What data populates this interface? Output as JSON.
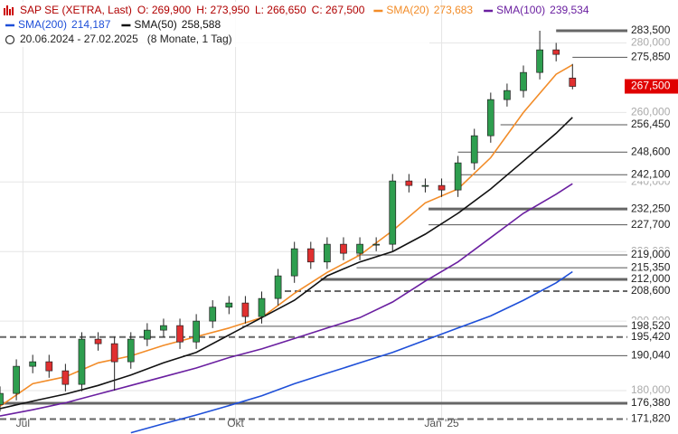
{
  "chart_data": {
    "type": "candlestick",
    "header": {
      "instrument": "SAP SE (XETRA, Last)",
      "open": "O: 269,900",
      "high": "H: 273,950",
      "low": "L: 266,650",
      "close": "C: 267,500",
      "range": "20.06.2024 - 27.02.2025",
      "period": "(8 Monate, 1 Tag)"
    },
    "xlim": [
      0,
      191.5
    ],
    "xticks": [
      {
        "value": 7,
        "label": "Jul"
      },
      {
        "value": 72,
        "label": "Okt"
      },
      {
        "value": 135,
        "label": "Jan '25"
      }
    ],
    "ylim": [
      167.53,
      292.34
    ],
    "yticks": [
      {
        "value": 180,
        "label": "180,000"
      },
      {
        "value": 200,
        "label": "200,000"
      },
      {
        "value": 220,
        "label": "220,000"
      },
      {
        "value": 240,
        "label": "240,000"
      },
      {
        "value": 260,
        "label": "260,000"
      },
      {
        "value": 280,
        "label": "280,000"
      }
    ],
    "candles": {
      "x": [
        0,
        5,
        10,
        15,
        20,
        25,
        30,
        35,
        40,
        45,
        50,
        55,
        60,
        65,
        70,
        75,
        80,
        85,
        90,
        95,
        100,
        105,
        110,
        115,
        120,
        125,
        130,
        135,
        140,
        145,
        150,
        155,
        160,
        165,
        170,
        175
      ],
      "open": [
        176,
        179.2,
        187,
        188.3,
        185.7,
        181.8,
        194.8,
        193.5,
        188.3,
        194.8,
        197.4,
        198.7,
        194,
        200,
        204,
        205.2,
        201.3,
        206.5,
        213,
        220.8,
        217,
        222.1,
        219.5,
        222.1,
        222.1,
        240.3,
        239,
        239,
        237.7,
        245.5,
        253.3,
        263.7,
        266.3,
        271.5,
        278,
        269.9
      ],
      "high": [
        181.2,
        189,
        190.3,
        190.3,
        187.7,
        196.8,
        196.8,
        195.5,
        196.8,
        199.4,
        200.7,
        200.7,
        202,
        206,
        207.2,
        207.2,
        208.5,
        215,
        222.8,
        222.8,
        224.1,
        224.1,
        224.1,
        224.1,
        242.3,
        242.3,
        241,
        241,
        247.5,
        255.3,
        265.7,
        268.3,
        273.5,
        283.5,
        280,
        273.95
      ],
      "low": [
        174,
        177.2,
        185,
        183.7,
        179.8,
        179.8,
        191.5,
        180,
        186.3,
        192.8,
        195.4,
        192,
        192,
        198,
        202,
        199.3,
        199.3,
        204.5,
        211,
        215,
        215,
        217.5,
        217.5,
        220.1,
        220.1,
        237,
        237,
        235.7,
        235.7,
        243.5,
        251.3,
        261.7,
        264.3,
        269.5,
        274.7,
        266.65
      ],
      "close": [
        179.2,
        187,
        188.3,
        185.7,
        181.8,
        194.8,
        193.5,
        188.3,
        194.8,
        197.4,
        198.7,
        194,
        200,
        204,
        205.2,
        201.3,
        206.5,
        213,
        220.8,
        217,
        222.1,
        219.5,
        222.1,
        222.1,
        240.3,
        239,
        239,
        237.7,
        245.5,
        253.3,
        263.7,
        266.3,
        271.5,
        278,
        276.7,
        267.5
      ]
    },
    "series": [
      {
        "name": "SMA(20)",
        "color": "#f28c28",
        "last_label": "273,683",
        "x": [
          0,
          10,
          20,
          30,
          40,
          50,
          60,
          70,
          80,
          90,
          100,
          110,
          120,
          130,
          140,
          150,
          160,
          170,
          175
        ],
        "values": [
          175.5,
          182,
          184,
          188,
          190,
          193,
          195.5,
          198,
          201,
          208,
          214,
          219,
          226,
          234,
          238,
          247,
          260,
          271,
          273.7
        ]
      },
      {
        "name": "SMA(100)",
        "color": "#6a1fa0",
        "last_label": "239,534",
        "x": [
          0,
          10,
          20,
          30,
          40,
          50,
          60,
          70,
          80,
          90,
          100,
          110,
          120,
          130,
          140,
          150,
          160,
          170,
          175
        ],
        "values": [
          172.7,
          174.5,
          176.5,
          179,
          181.5,
          184,
          186.5,
          189.5,
          192,
          195,
          198,
          201,
          205.5,
          211.5,
          217,
          224,
          231,
          236.5,
          239.5
        ]
      },
      {
        "name": "SMA(200)",
        "color": "#1e4fd8",
        "last_label": "214,187",
        "x": [
          0,
          10,
          20,
          30,
          40,
          50,
          60,
          70,
          80,
          90,
          100,
          110,
          120,
          130,
          140,
          150,
          160,
          170,
          175
        ],
        "values": [
          null,
          null,
          null,
          null,
          167.9,
          170.5,
          173,
          175.7,
          178.5,
          182,
          185,
          188,
          191,
          194.5,
          198,
          201.5,
          206,
          211,
          214.2
        ]
      },
      {
        "name": "SMA(50)",
        "color": "#111111",
        "last_label": "258,588",
        "x": [
          0,
          10,
          20,
          30,
          40,
          50,
          60,
          70,
          80,
          90,
          100,
          110,
          120,
          130,
          140,
          150,
          160,
          170,
          175
        ],
        "values": [
          174.8,
          177,
          179,
          181.5,
          184.5,
          188,
          191,
          196,
          201,
          206,
          213,
          217,
          220,
          225,
          231,
          238,
          246,
          254,
          258.6
        ]
      }
    ],
    "levels": [
      {
        "value": 283.5,
        "label": "283,500",
        "from": 170,
        "style": "thick"
      },
      {
        "value": 275.85,
        "label": "275,850",
        "from": 175,
        "style": "solid"
      },
      {
        "value": 256.45,
        "label": "256,450",
        "from": 153,
        "style": "solid"
      },
      {
        "value": 248.6,
        "label": "248,600",
        "from": 140,
        "style": "solid"
      },
      {
        "value": 242.1,
        "label": "242,100",
        "from": 140,
        "style": "solid"
      },
      {
        "value": 232.25,
        "label": "232,250",
        "from": 131,
        "style": "thick"
      },
      {
        "value": 227.7,
        "label": "227,700",
        "from": 131,
        "style": "solid"
      },
      {
        "value": 219,
        "label": "219,000",
        "from": 109,
        "style": "solid"
      },
      {
        "value": 215.35,
        "label": "215,350",
        "from": 109,
        "style": "solid"
      },
      {
        "value": 212,
        "label": "212,000",
        "from": 98,
        "style": "thick"
      },
      {
        "value": 208.6,
        "label": "208,600",
        "from": 84,
        "style": "dashed"
      },
      {
        "value": 198.52,
        "label": "198,520",
        "from": 74,
        "style": "solid"
      },
      {
        "value": 195.42,
        "label": "195,420",
        "from": 0,
        "style": "dashed"
      },
      {
        "value": 190.04,
        "label": "190,040",
        "from": 56,
        "style": "solid"
      },
      {
        "value": 176.38,
        "label": "176,380",
        "from": 0,
        "style": "thick"
      },
      {
        "value": 171.82,
        "label": "171,820",
        "from": 0,
        "style": "dashed"
      }
    ],
    "last": {
      "value": 267.5,
      "label": "267,500",
      "color": "#e00000"
    }
  }
}
